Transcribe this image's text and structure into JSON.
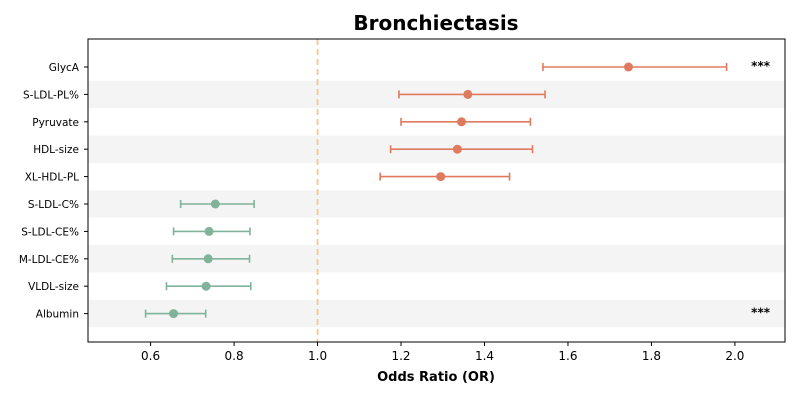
{
  "chart_data": {
    "type": "scatter",
    "subtype": "forest-plot",
    "title": "Bronchiectasis",
    "xlabel": "Odds Ratio (OR)",
    "ylabel": "",
    "xlim": [
      0.45,
      2.12
    ],
    "xticks": [
      0.6,
      0.8,
      1.0,
      1.2,
      1.4,
      1.6,
      1.8,
      2.0
    ],
    "xtick_labels": [
      "0.6",
      "0.8",
      "1.0",
      "1.2",
      "1.4",
      "1.6",
      "1.8",
      "2.0"
    ],
    "reference_line": {
      "x": 1.0,
      "style": "dashed",
      "color": "#f5c98a"
    },
    "grid": false,
    "row_banding": true,
    "colors": {
      "increased": "#e07a5f",
      "decreased": "#81b29a",
      "band": "#f4f4f4"
    },
    "rows": [
      {
        "label": "GlycA",
        "or": 1.745,
        "ci_low": 1.54,
        "ci_high": 1.98,
        "sig": "***",
        "group": "increased"
      },
      {
        "label": "S-LDL-PL%",
        "or": 1.36,
        "ci_low": 1.195,
        "ci_high": 1.545,
        "sig": "",
        "group": "increased"
      },
      {
        "label": "Pyruvate",
        "or": 1.345,
        "ci_low": 1.2,
        "ci_high": 1.51,
        "sig": "",
        "group": "increased"
      },
      {
        "label": "HDL-size",
        "or": 1.335,
        "ci_low": 1.175,
        "ci_high": 1.515,
        "sig": "",
        "group": "increased"
      },
      {
        "label": "XL-HDL-PL",
        "or": 1.295,
        "ci_low": 1.15,
        "ci_high": 1.46,
        "sig": "",
        "group": "increased"
      },
      {
        "label": "S-LDL-C%",
        "or": 0.755,
        "ci_low": 0.672,
        "ci_high": 0.848,
        "sig": "",
        "group": "decreased"
      },
      {
        "label": "S-LDL-CE%",
        "or": 0.74,
        "ci_low": 0.655,
        "ci_high": 0.838,
        "sig": "",
        "group": "decreased"
      },
      {
        "label": "M-LDL-CE%",
        "or": 0.738,
        "ci_low": 0.652,
        "ci_high": 0.837,
        "sig": "",
        "group": "decreased"
      },
      {
        "label": "VLDL-size",
        "or": 0.733,
        "ci_low": 0.638,
        "ci_high": 0.84,
        "sig": "",
        "group": "decreased"
      },
      {
        "label": "Albumin",
        "or": 0.655,
        "ci_low": 0.588,
        "ci_high": 0.732,
        "sig": "***",
        "group": "decreased"
      }
    ]
  }
}
